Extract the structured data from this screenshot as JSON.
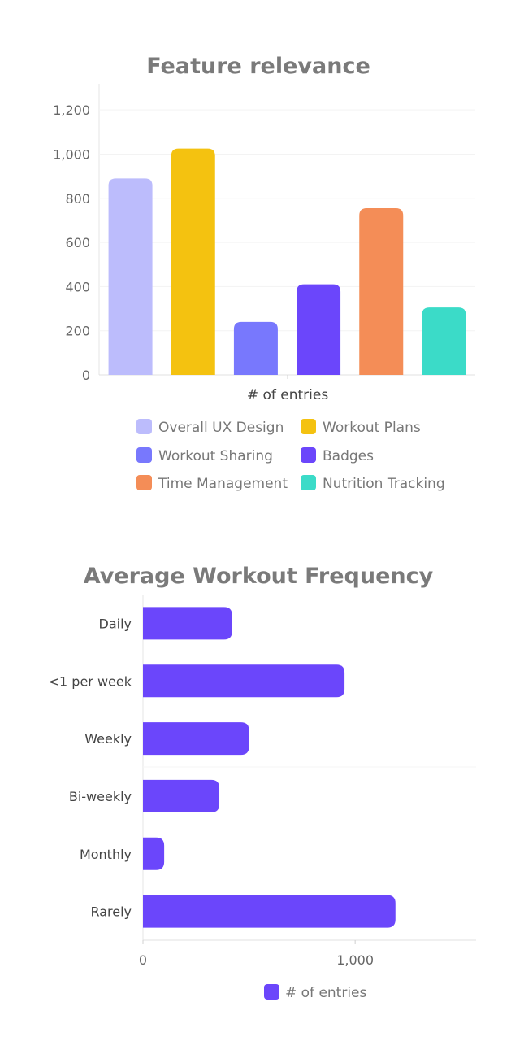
{
  "chart_data": [
    {
      "type": "bar",
      "title": "Feature relevance",
      "xlabel": "# of entries",
      "ylabel": "",
      "ylim": [
        0,
        1300
      ],
      "yticks": [
        0,
        200,
        400,
        600,
        800,
        1000,
        1200
      ],
      "ytick_labels": [
        "0",
        "200",
        "400",
        "600",
        "800",
        "1,000",
        "1,200"
      ],
      "categories": [
        "Overall UX Design",
        "Workout Plans",
        "Workout Sharing",
        "Badges",
        "Time Management",
        "Nutrition Tracking"
      ],
      "values": [
        890,
        1025,
        240,
        410,
        755,
        305
      ],
      "colors": [
        "#bcbcfc",
        "#f4c210",
        "#7878fd",
        "#6b46fb",
        "#f48d57",
        "#3bdbc8"
      ],
      "legend_position": "bottom",
      "grid": true
    },
    {
      "type": "bar",
      "orientation": "horizontal",
      "title": "Average Workout Frequency",
      "categories": [
        "Daily",
        "<1 per week",
        "Weekly",
        "Bi-weekly",
        "Monthly",
        "Rarely"
      ],
      "series": [
        {
          "name": "# of entries",
          "values": [
            420,
            950,
            500,
            360,
            100,
            1190
          ],
          "color": "#6b46fb"
        }
      ],
      "xlim": [
        0,
        1570
      ],
      "xticks": [
        0,
        1000
      ],
      "xtick_labels": [
        "0",
        "1,000"
      ],
      "legend_position": "bottom",
      "grid": true
    }
  ]
}
